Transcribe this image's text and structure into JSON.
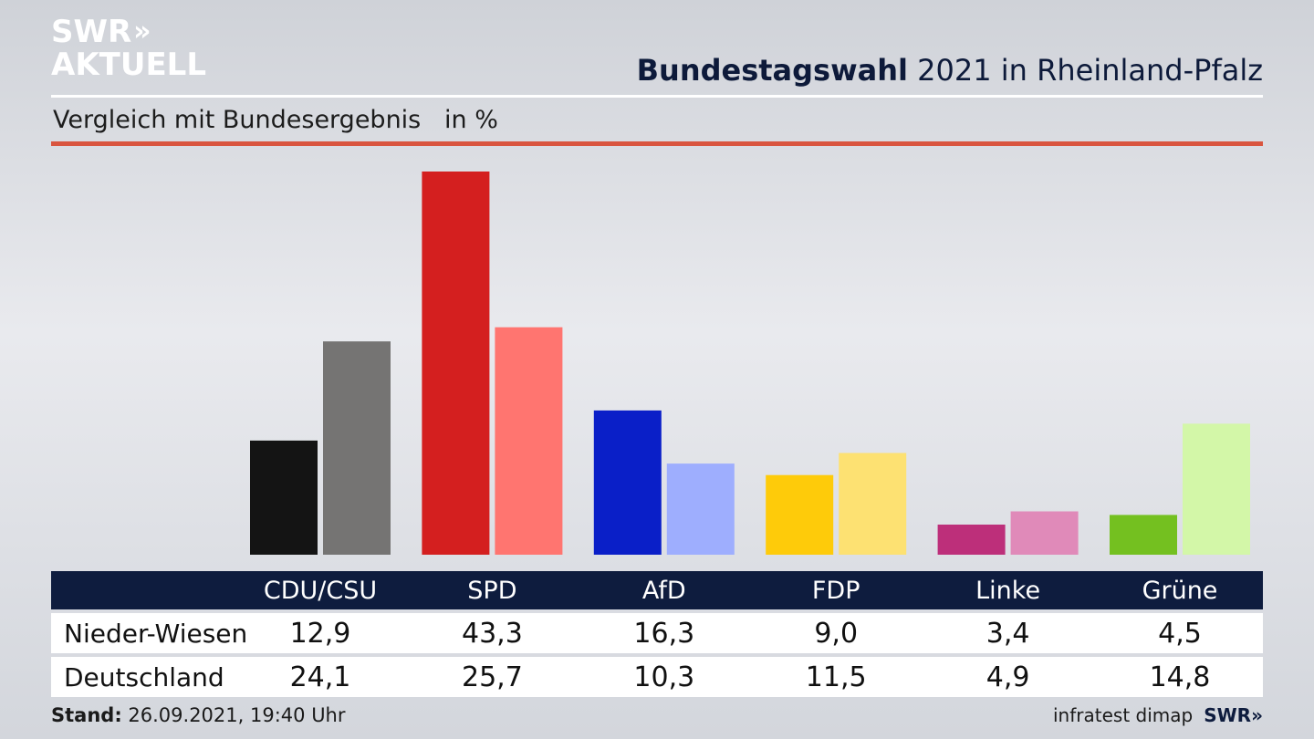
{
  "logo": {
    "line1": "SWR",
    "chevrons": "»",
    "line2": "AKTUELL"
  },
  "header": {
    "title_bold": "Bundestagswahl",
    "title_rest": "2021 in Rheinland-Pfalz",
    "subtitle": "Vergleich mit Bundesergebnis   in %"
  },
  "chart_data": {
    "type": "bar",
    "categories": [
      "CDU/CSU",
      "SPD",
      "AfD",
      "FDP",
      "Linke",
      "Grüne"
    ],
    "series": [
      {
        "name": "Nieder-Wiesen",
        "values": [
          12.9,
          43.3,
          16.3,
          9.0,
          3.4,
          4.5
        ],
        "colors": [
          "#141414",
          "#d41f1f",
          "#0a1fc8",
          "#fecb0a",
          "#bd2f7a",
          "#74c020"
        ]
      },
      {
        "name": "Deutschland",
        "values": [
          24.1,
          25.7,
          10.3,
          11.5,
          4.9,
          14.8
        ],
        "colors": [
          "#757473",
          "#ff7570",
          "#9eaefe",
          "#fde172",
          "#e08ab9",
          "#d3f7a8"
        ]
      }
    ],
    "ylim": [
      0,
      43.3
    ],
    "grid": false,
    "legend": "table-below"
  },
  "table": {
    "headers": [
      "CDU/CSU",
      "SPD",
      "AfD",
      "FDP",
      "Linke",
      "Grüne"
    ],
    "rows": [
      {
        "label": "Nieder-Wiesen",
        "values": [
          "12,9",
          "43,3",
          "16,3",
          "9,0",
          "3,4",
          "4,5"
        ]
      },
      {
        "label": "Deutschland",
        "values": [
          "24,1",
          "25,7",
          "10,3",
          "11,5",
          "4,9",
          "14,8"
        ]
      }
    ]
  },
  "footer": {
    "stand_label": "Stand:",
    "stand_value": "26.09.2021, 19:40 Uhr",
    "source": "infratest dimap",
    "source_logo": "SWR»"
  }
}
